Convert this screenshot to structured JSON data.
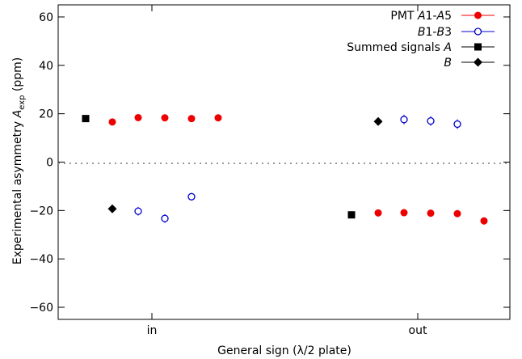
{
  "chart_data": {
    "type": "scatter",
    "xlabel": "General sign (λ/2 plate)",
    "ylabel_text": "Experimental asymmetry",
    "ylabel_symbol": "A",
    "ylabel_subscript": "exp",
    "ylabel_unit": "(ppm)",
    "ylim": [
      -65,
      65
    ],
    "yticks": [
      -60,
      -40,
      -20,
      0,
      20,
      40,
      60
    ],
    "ytick_labels": [
      "−60",
      "−40",
      "−20",
      "0",
      "20",
      "40",
      "60"
    ],
    "categories": [
      "in",
      "out"
    ],
    "zero_line": true,
    "legend": {
      "placement": "top-right",
      "entries": [
        {
          "label": "PMT A1-A5",
          "series": "pmt_a"
        },
        {
          "label": "B1-B3",
          "series": "pmt_b"
        },
        {
          "label": "Summed signals A",
          "series": "sum_a"
        },
        {
          "label": "B",
          "series": "sum_b"
        }
      ]
    },
    "series": [
      {
        "key": "sum_a",
        "marker": "square",
        "color": "#000000",
        "points": [
          {
            "category": "in",
            "slot": 0,
            "y": 18.0
          },
          {
            "category": "out",
            "slot": 0,
            "y": -21.8
          }
        ]
      },
      {
        "key": "sum_b",
        "marker": "diamond",
        "color": "#000000",
        "points": [
          {
            "category": "in",
            "slot": 1,
            "y": -19.3
          },
          {
            "category": "out",
            "slot": 1,
            "y": 16.8
          }
        ]
      },
      {
        "key": "pmt_a",
        "marker": "circle",
        "color": "#ee0000",
        "points": [
          {
            "category": "in",
            "slot": 1,
            "y": 16.6,
            "err": 0.5
          },
          {
            "category": "in",
            "slot": 2,
            "y": 18.4,
            "err": 0.5
          },
          {
            "category": "in",
            "slot": 3,
            "y": 18.3,
            "err": 0.5
          },
          {
            "category": "in",
            "slot": 4,
            "y": 18.0,
            "err": 0.5
          },
          {
            "category": "in",
            "slot": 5,
            "y": 18.3,
            "err": 0.5
          },
          {
            "category": "out",
            "slot": 1,
            "y": -21.0,
            "err": 0.6
          },
          {
            "category": "out",
            "slot": 2,
            "y": -20.9,
            "err": 0.6
          },
          {
            "category": "out",
            "slot": 3,
            "y": -21.1,
            "err": 0.6
          },
          {
            "category": "out",
            "slot": 4,
            "y": -21.3,
            "err": 1.0
          },
          {
            "category": "out",
            "slot": 5,
            "y": -24.3,
            "err": 1.5
          }
        ]
      },
      {
        "key": "pmt_b",
        "marker": "open-circle",
        "color": "#0000cc",
        "points": [
          {
            "category": "in",
            "slot": 2,
            "y": -20.3,
            "err": 1.8
          },
          {
            "category": "in",
            "slot": 3,
            "y": -23.3,
            "err": 1.8
          },
          {
            "category": "in",
            "slot": 4,
            "y": -14.3,
            "err": 1.5
          },
          {
            "category": "out",
            "slot": 2,
            "y": 17.6,
            "err": 2.0
          },
          {
            "category": "out",
            "slot": 3,
            "y": 17.0,
            "err": 2.0
          },
          {
            "category": "out",
            "slot": 4,
            "y": 15.7,
            "err": 2.0
          }
        ]
      }
    ]
  }
}
